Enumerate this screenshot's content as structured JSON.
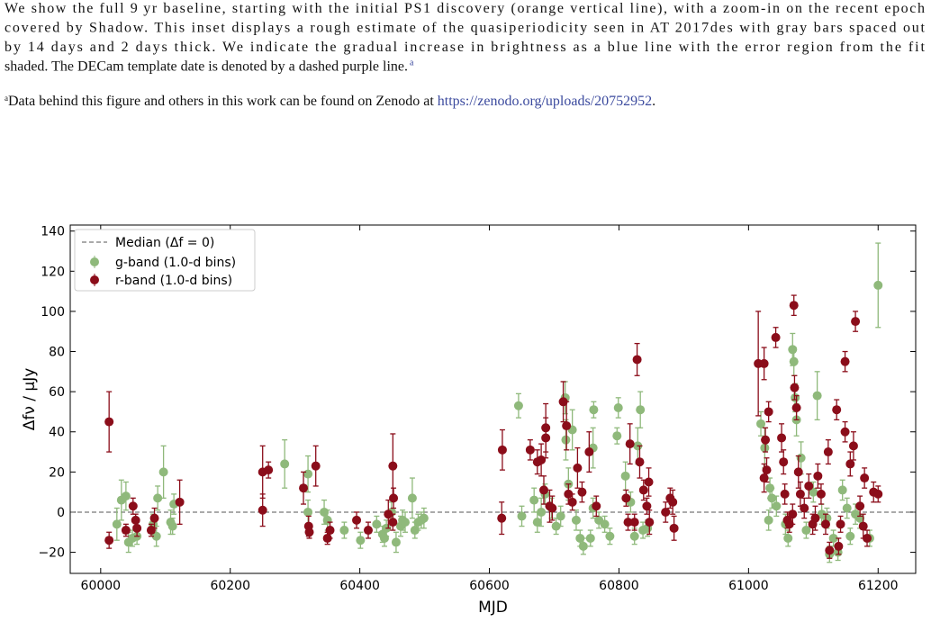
{
  "caption_lines": [
    "We show the full 9 yr baseline, starting with the initial PS1 discovery (orange vertical line), with a zoom-in on the recent epoch",
    "covered by Shadow. This inset displays a rough estimate of the quasiperiodicity seen in AT 2017des with gray bars spaced out",
    "by 14 days and 2 days thick. We indicate the gradual increase in brightness as a blue line with the error region from the fit",
    "shaded. The DECam template date is denoted by a dashed purple line."
  ],
  "caption_mark": "a",
  "footnote": {
    "mark": "a",
    "text": "Data behind this figure and others in this work can be found on Zenodo at ",
    "url": "https://zenodo.org/uploads/20752952",
    "end": "."
  },
  "chart_data": {
    "type": "errorbar-scatter",
    "xlabel": "MJD",
    "ylabel": "Δfν / μJy",
    "xlim": [
      59953,
      61258
    ],
    "ylim": [
      -30.5,
      143
    ],
    "xticks": [
      60000,
      60200,
      60400,
      60600,
      60800,
      61000,
      61200
    ],
    "yticks": [
      {
        "value": -20,
        "label": "−20"
      },
      0,
      20,
      40,
      60,
      80,
      100,
      120,
      140
    ],
    "hline": {
      "name": "Median (Δf = 0)",
      "value": 0,
      "color": "#555555"
    },
    "legend": "upper left",
    "series": [
      {
        "name": "g-band (1.0-d bins)",
        "color": "#8fb97b",
        "x": [
          60025,
          60032,
          60039,
          60043,
          60049,
          60056,
          60081,
          60086,
          60088,
          60097,
          60108,
          60111,
          60113,
          60284,
          60320,
          60320,
          60345,
          60350,
          60376,
          60401,
          60426,
          60435,
          60438,
          60441,
          60449,
          60456,
          60463,
          60466,
          60470,
          60481,
          60485,
          60490,
          60495,
          60499,
          60645,
          60650,
          60669,
          60674,
          60680,
          60686,
          60696,
          60703,
          60710,
          60717,
          60718,
          60722,
          60728,
          60734,
          60740,
          60745,
          60756,
          60760,
          60760,
          60761,
          60769,
          60778,
          60786,
          60797,
          60799,
          60810,
          60818,
          60824,
          60829,
          60833,
          60837,
          60844,
          61019,
          61025,
          61033,
          61031,
          61036,
          61043,
          61057,
          61061,
          61068,
          61070,
          61072,
          61074,
          61081,
          61089,
          61100,
          61106,
          61113,
          61121,
          61125,
          61131,
          61138,
          61145,
          61152,
          61157,
          61165,
          61172,
          61187,
          61200
        ],
        "values": [
          -6,
          6,
          8,
          -15,
          -13,
          -12,
          -6,
          -12,
          7,
          20,
          -5,
          -7,
          4,
          24,
          19,
          0,
          0,
          -4,
          -9,
          -14,
          -6,
          -11,
          -13,
          -8,
          0,
          -15,
          -7,
          -4,
          -5,
          7,
          -9,
          -5,
          -4,
          -3,
          53,
          -2,
          6,
          -5,
          0,
          9,
          2,
          -7,
          -2,
          57,
          36,
          14,
          41,
          -4,
          -13,
          -17,
          -13,
          2,
          32,
          51,
          -4,
          -6,
          -12,
          38,
          52,
          18,
          5,
          -12,
          33,
          51,
          -9,
          -8,
          44,
          32,
          12,
          -4,
          7,
          3,
          -6,
          -13,
          81,
          75,
          57,
          46,
          27,
          -9,
          10,
          58,
          -1,
          -3,
          -21,
          -13,
          -20,
          11,
          2,
          -12,
          -1,
          -3,
          -13,
          113
        ],
        "errors": [
          8,
          10,
          7,
          5,
          4,
          4,
          5,
          5,
          6,
          13,
          6,
          4,
          5,
          12,
          9,
          6,
          6,
          5,
          4,
          4,
          4,
          4,
          4,
          4,
          5,
          5,
          5,
          5,
          5,
          10,
          4,
          4,
          4,
          5,
          6,
          5,
          6,
          5,
          7,
          5,
          5,
          4,
          5,
          8,
          10,
          8,
          10,
          5,
          4,
          4,
          4,
          5,
          10,
          4,
          4,
          4,
          4,
          4,
          5,
          7,
          5,
          4,
          9,
          9,
          4,
          4,
          6,
          10,
          5,
          5,
          5,
          5,
          5,
          4,
          8,
          7,
          7,
          8,
          8,
          4,
          5,
          12,
          5,
          5,
          4,
          4,
          4,
          5,
          5,
          4,
          5,
          5,
          4,
          21
        ]
      },
      {
        "name": "r-band (1.0-d bins)",
        "color": "#8b0d1a",
        "x": [
          60013,
          60013,
          60039,
          60050,
          60054,
          60056,
          60083,
          60078,
          60122,
          60250,
          60259,
          60250,
          60313,
          60321,
          60322,
          60332,
          60350,
          60354,
          60395,
          60413,
          60444,
          60451,
          60451,
          60452,
          60619,
          60620,
          60663,
          60674,
          60680,
          60684,
          60687,
          60687,
          60693,
          60697,
          60714,
          60719,
          60722,
          60728,
          60736,
          60743,
          60754,
          60765,
          60811,
          60814,
          60817,
          60824,
          60828,
          60832,
          60838,
          60843,
          60846,
          60847,
          60872,
          60879,
          60883,
          60885,
          61015,
          61024,
          61031,
          61026,
          61042,
          61024,
          61028,
          61051,
          61054,
          61056,
          61060,
          61063,
          61068,
          61070,
          61071,
          61074,
          61077,
          61080,
          61086,
          61093,
          61099,
          61103,
          61107,
          61112,
          61119,
          61123,
          61125,
          61136,
          61142,
          61149,
          61149,
          61157,
          61162,
          61165,
          61172,
          61177,
          61179,
          61183,
          61193,
          61200,
          61139
        ],
        "values": [
          -14,
          45,
          -9,
          3,
          -4,
          -8,
          -3,
          -9,
          5,
          20,
          21,
          1,
          12,
          -7,
          -10,
          23,
          -13,
          -9,
          -4,
          -9,
          -1,
          -5,
          23,
          7,
          -3,
          31,
          31,
          25,
          26,
          11,
          42,
          37,
          3,
          2,
          55,
          43,
          9,
          5,
          22,
          10,
          30,
          3,
          7,
          -5,
          34,
          -5,
          76,
          25,
          11,
          3,
          15,
          -5,
          0,
          7,
          5,
          -8,
          74,
          74,
          50,
          36,
          87,
          17,
          21,
          37,
          25,
          9,
          -4,
          -6,
          -1,
          103,
          62,
          52,
          20,
          9,
          2,
          13,
          -6,
          -3,
          18,
          9,
          -6,
          30,
          -19,
          51,
          -6,
          75,
          40,
          24,
          33,
          95,
          3,
          -7,
          17,
          -13,
          10,
          9,
          -17
        ],
        "errors": [
          4,
          15,
          3,
          4,
          3,
          4,
          5,
          3,
          11,
          13,
          4,
          8,
          8,
          5,
          3,
          10,
          3,
          4,
          4,
          4,
          7,
          4,
          16,
          5,
          8,
          10,
          5,
          6,
          8,
          7,
          12,
          10,
          8,
          6,
          10,
          12,
          5,
          4,
          10,
          5,
          10,
          5,
          4,
          4,
          10,
          4,
          8,
          8,
          5,
          4,
          7,
          6,
          5,
          5,
          6,
          6,
          26,
          8,
          5,
          6,
          5,
          7,
          6,
          7,
          6,
          5,
          4,
          4,
          5,
          5,
          6,
          6,
          8,
          6,
          5,
          6,
          5,
          6,
          6,
          5,
          5,
          6,
          4,
          5,
          4,
          5,
          5,
          6,
          7,
          5,
          5,
          6,
          5,
          4,
          5,
          4,
          4
        ]
      }
    ]
  }
}
